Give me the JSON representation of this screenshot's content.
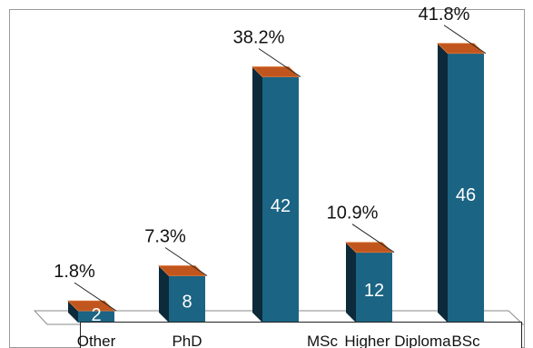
{
  "chart_data": {
    "type": "bar",
    "categories": [
      "Other",
      "PhD",
      "MSc",
      "Higher Diploma",
      "BSc"
    ],
    "values": [
      2,
      8,
      42,
      12,
      46
    ],
    "percent_labels": [
      "1.8%",
      "7.3%",
      "38.2%",
      "10.9%",
      "41.8%"
    ],
    "value_labels": [
      "2",
      "8",
      "42",
      "12",
      "46"
    ],
    "ylim": [
      0,
      50
    ],
    "grid": false,
    "legend": "none",
    "style": "3d-column"
  },
  "colors": {
    "bar_front": "#1b6483",
    "bar_side": "#0c2a3a",
    "bar_top": "#c0561d",
    "bar_top_highlight": "#e07a3c",
    "floor_line": "#8a8a8a",
    "frame": "#9a9a9a",
    "label_text": "#111111",
    "value_text": "#ffffff"
  }
}
